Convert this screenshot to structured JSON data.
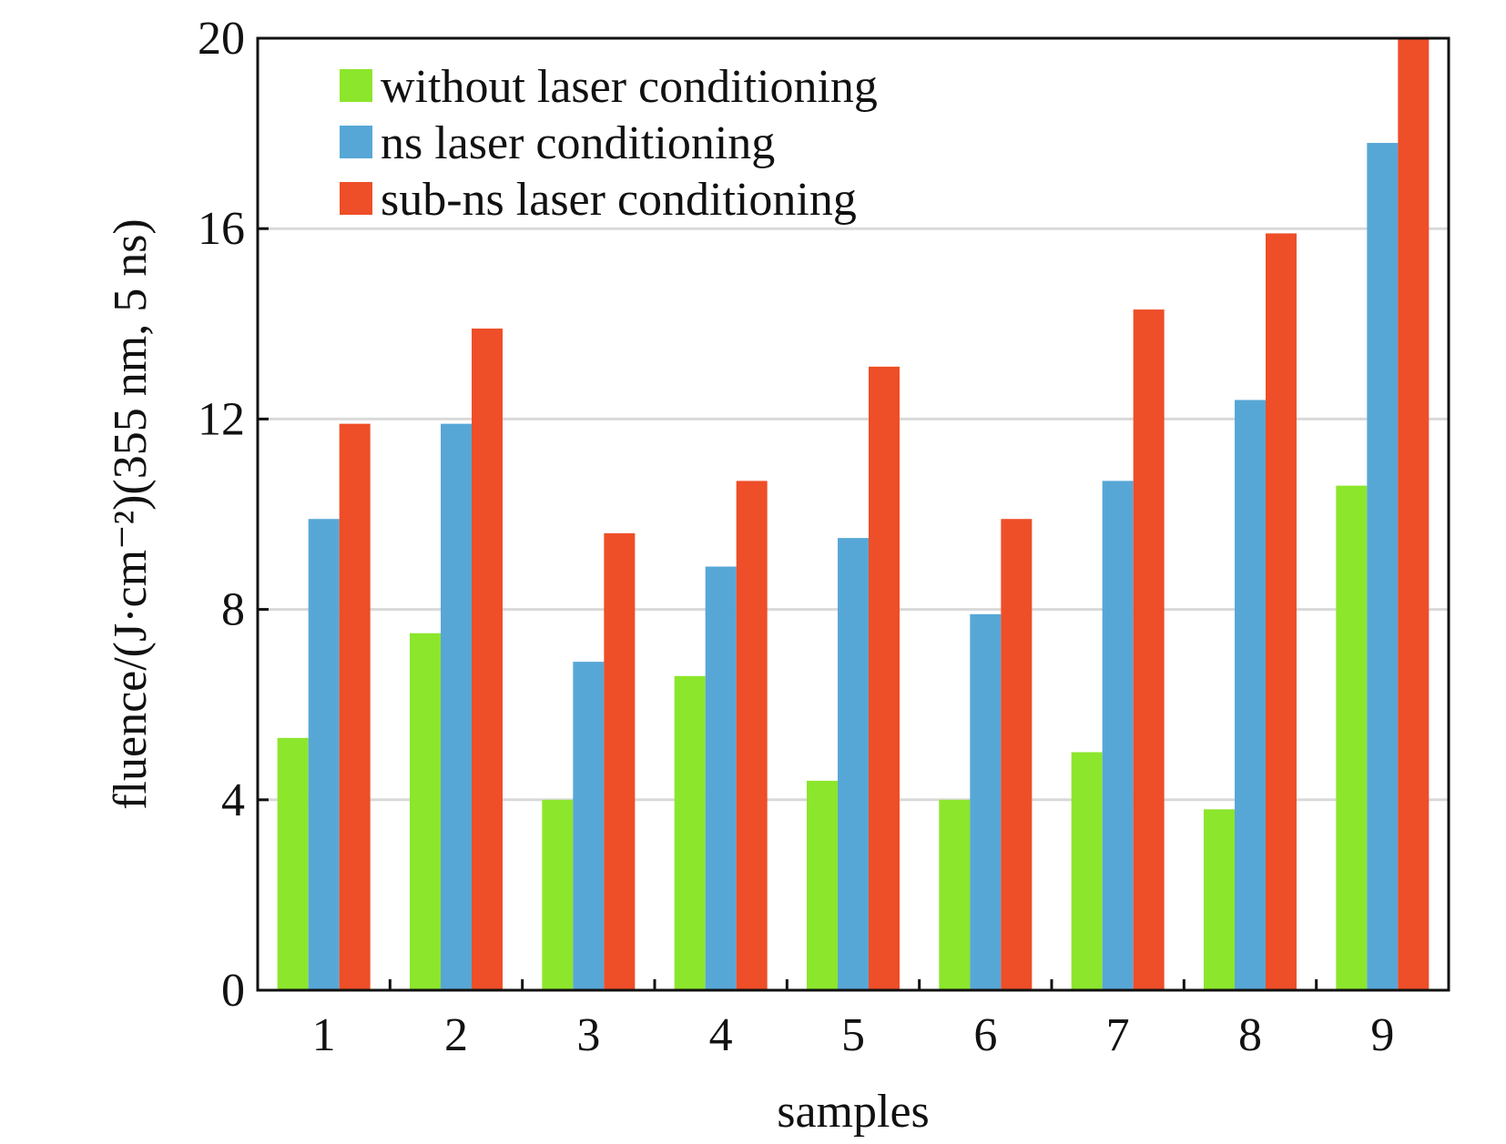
{
  "chart_data": {
    "type": "bar",
    "xlabel": "samples",
    "ylabel": "fluence/(J·cm⁻²)(355 nm, 5 ns)",
    "categories": [
      "1",
      "2",
      "3",
      "4",
      "5",
      "6",
      "7",
      "8",
      "9"
    ],
    "ylim": [
      0,
      20
    ],
    "yticks": [
      "0",
      "4",
      "8",
      "12",
      "16",
      "20"
    ],
    "grid": "horizontal",
    "legend_position": "top-left",
    "series": [
      {
        "name": "without laser conditioning",
        "color": "#8ce62c",
        "values": [
          5.3,
          7.5,
          4.0,
          6.6,
          4.4,
          4.0,
          5.0,
          3.8,
          10.6
        ]
      },
      {
        "name": "ns laser conditioning",
        "color": "#57a7d6",
        "values": [
          9.9,
          11.9,
          6.9,
          8.9,
          9.5,
          7.9,
          10.7,
          12.4,
          17.8
        ]
      },
      {
        "name": "sub-ns laser conditioning",
        "color": "#ee4e28",
        "values": [
          11.9,
          13.9,
          9.6,
          10.7,
          13.1,
          9.9,
          14.3,
          15.9,
          20.0
        ]
      }
    ]
  }
}
